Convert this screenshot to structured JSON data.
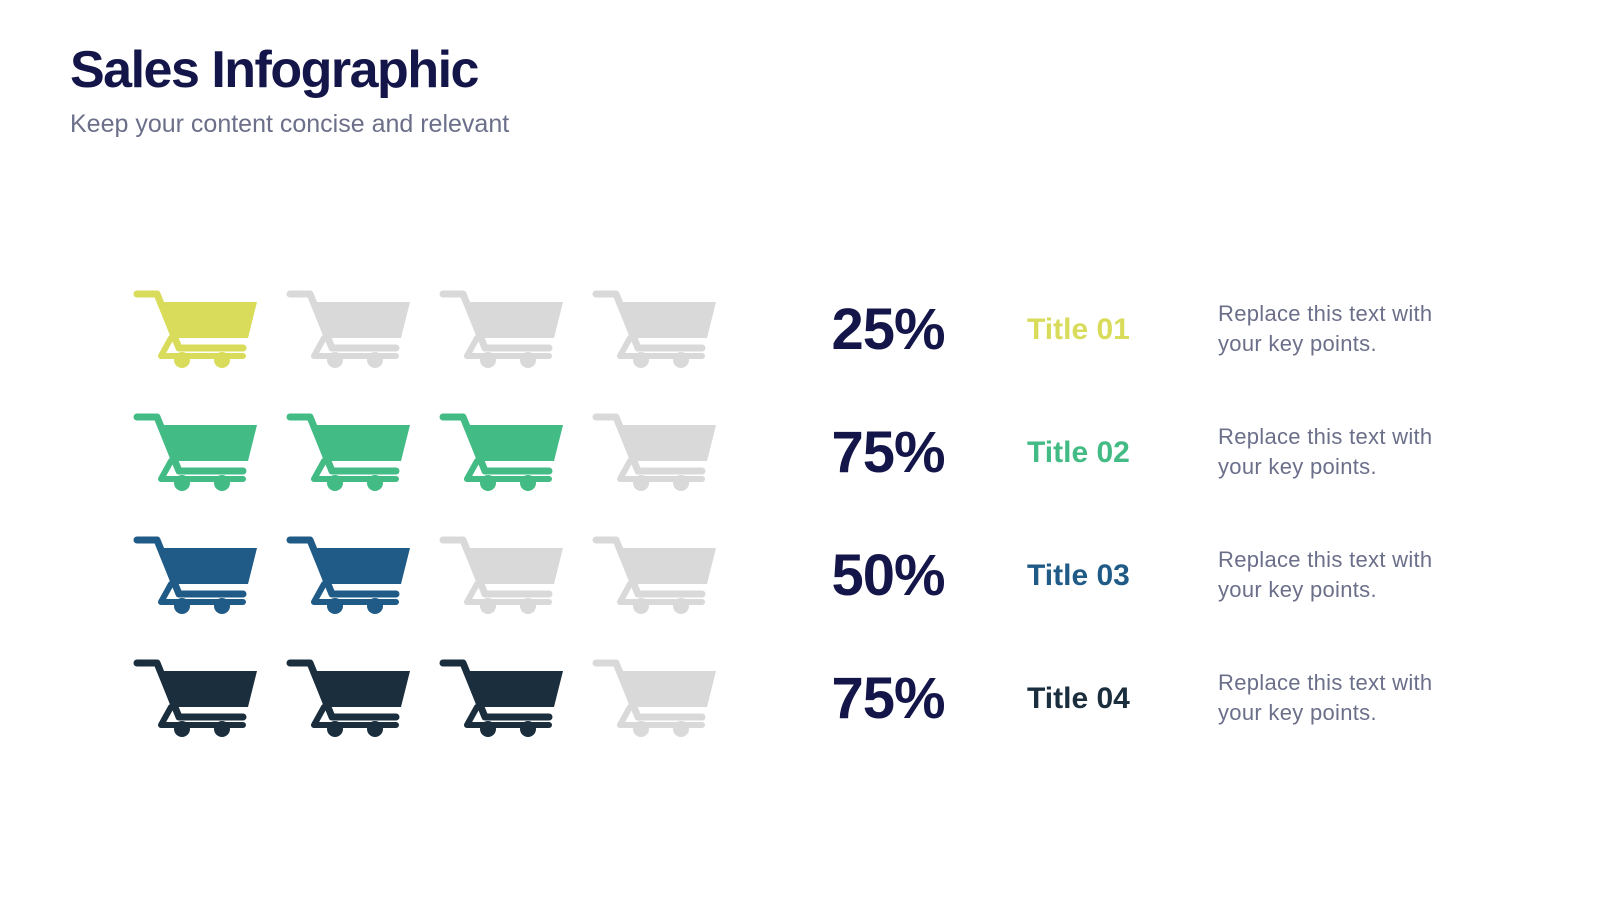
{
  "chart_data": {
    "type": "pictograph",
    "title": "Sales Infographic",
    "subtitle": "Keep your content concise and relevant",
    "categories": [
      "Title 01",
      "Title 02",
      "Title 03",
      "Title 04"
    ],
    "values": [
      25,
      75,
      50,
      75
    ],
    "value_labels": [
      "25%",
      "75%",
      "50%",
      "75%"
    ],
    "descriptions": [
      "Replace this text with your key points.",
      "Replace this text with your key points.",
      "Replace this text with your key points.",
      "Replace this text with your key points."
    ],
    "colors": [
      "#d9dc5a",
      "#43bb84",
      "#1f5b86",
      "#1a2e3e"
    ],
    "empty_color": "#d9d9d9"
  }
}
